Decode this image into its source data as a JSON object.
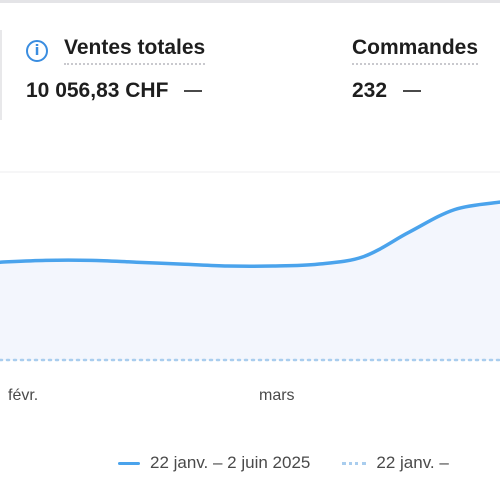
{
  "metrics": [
    {
      "label": "Ventes totales",
      "value": "10 056,83 CHF",
      "has_info_icon": true
    },
    {
      "label": "Commandes",
      "value": "232",
      "has_info_icon": false
    }
  ],
  "colors": {
    "primary_line": "#4aa3ec",
    "comparison_line": "#a9cdee",
    "info_icon": "#3a8de0"
  },
  "chart_data": {
    "type": "line",
    "x_tick_labels": [
      "févr.",
      "mars"
    ],
    "series": [
      {
        "name": "22 janv. – 2 juin 2025",
        "style": "solid-area",
        "y": [
          0.52,
          0.53,
          0.53,
          0.52,
          0.51,
          0.5,
          0.5,
          0.51,
          0.55,
          0.68,
          0.8,
          0.84
        ]
      },
      {
        "name": "22 janv. –",
        "style": "dotted",
        "y": [
          0,
          0,
          0,
          0,
          0,
          0,
          0,
          0,
          0,
          0,
          0,
          0
        ]
      }
    ],
    "grid": true
  }
}
